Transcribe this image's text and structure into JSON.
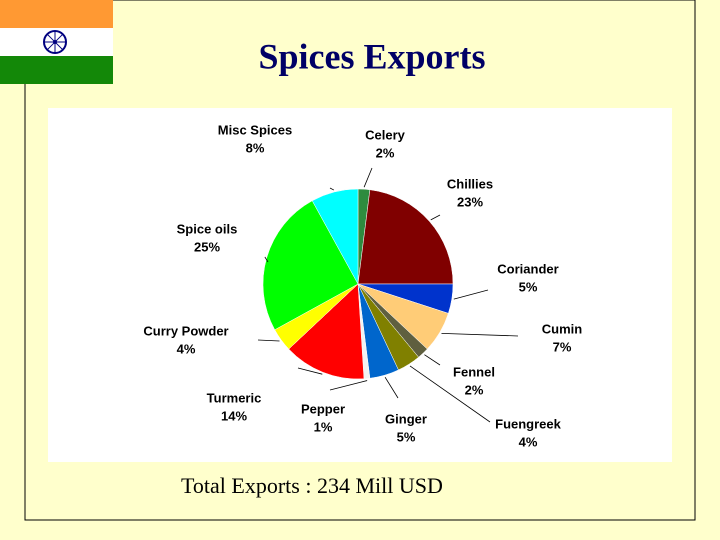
{
  "chart_data": {
    "type": "pie",
    "title": "Spices Exports",
    "subtitle": "Total Exports : 234 Mill USD",
    "categories": [
      "Celery",
      "Chillies",
      "Coriander",
      "Cumin",
      "Fennel",
      "Fuengreek",
      "Ginger",
      "Pepper",
      "Turmeric",
      "Curry Powder",
      "Spice oils",
      "Misc Spices"
    ],
    "values": [
      2,
      23,
      5,
      7,
      2,
      4,
      5,
      1,
      14,
      4,
      25,
      8
    ],
    "value_labels": [
      "2%",
      "23%",
      "5%",
      "7%",
      "2%",
      "4%",
      "5%",
      "1%",
      "14%",
      "4%",
      "25%",
      "8%"
    ],
    "colors": [
      "#2E8B3E",
      "#800000",
      "#0033CC",
      "#FFCC77",
      "#5F5F3F",
      "#808000",
      "#0066CC",
      "#F2F2F2",
      "#FF0000",
      "#FFFF00",
      "#00FF00",
      "#00FFFF"
    ]
  }
}
